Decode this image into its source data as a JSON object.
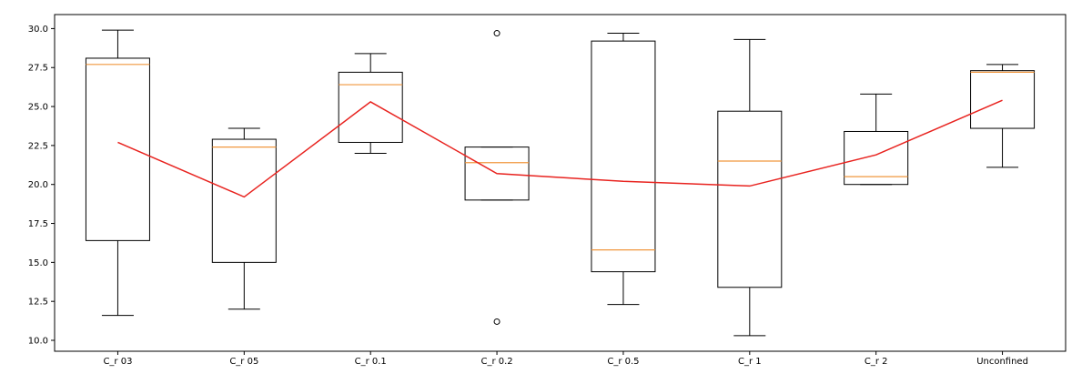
{
  "chart_data": {
    "type": "box",
    "title": "",
    "xlabel": "",
    "ylabel": "",
    "ylim": [
      9.3,
      30.9
    ],
    "yticks": [
      10.0,
      12.5,
      15.0,
      17.5,
      20.0,
      22.5,
      25.0,
      27.5,
      30.0
    ],
    "ytick_labels": [
      "10.0",
      "12.5",
      "15.0",
      "17.5",
      "20.0",
      "22.5",
      "25.0",
      "27.5",
      "30.0"
    ],
    "grid": false,
    "categories": [
      "C_r 03",
      "C_r 05",
      "C_r 0.1",
      "C_r 0.2",
      "C_r 0.5",
      "C_r 1",
      "C_r 2",
      "Unconfined"
    ],
    "boxes": [
      {
        "whisker_low": 11.6,
        "q1": 16.4,
        "median": 27.7,
        "q3": 28.1,
        "whisker_high": 29.9,
        "outliers": []
      },
      {
        "whisker_low": 12.0,
        "q1": 15.0,
        "median": 22.4,
        "q3": 22.9,
        "whisker_high": 23.6,
        "outliers": []
      },
      {
        "whisker_low": 22.0,
        "q1": 22.7,
        "median": 26.4,
        "q3": 27.2,
        "whisker_high": 28.4,
        "outliers": []
      },
      {
        "whisker_low": 19.0,
        "q1": 19.0,
        "median": 21.4,
        "q3": 22.4,
        "whisker_high": 22.4,
        "outliers": [
          29.7,
          11.2
        ]
      },
      {
        "whisker_low": 12.3,
        "q1": 14.4,
        "median": 15.8,
        "q3": 29.2,
        "whisker_high": 29.7,
        "outliers": []
      },
      {
        "whisker_low": 10.3,
        "q1": 13.4,
        "median": 21.5,
        "q3": 24.7,
        "whisker_high": 29.3,
        "outliers": []
      },
      {
        "whisker_low": 20.0,
        "q1": 20.0,
        "median": 20.5,
        "q3": 23.4,
        "whisker_high": 25.8,
        "outliers": []
      },
      {
        "whisker_low": 21.1,
        "q1": 23.6,
        "median": 27.2,
        "q3": 27.3,
        "whisker_high": 27.7,
        "outliers": []
      }
    ],
    "mean_line": {
      "color": "#e8231f",
      "values": [
        22.7,
        19.2,
        25.3,
        20.7,
        20.2,
        19.9,
        21.9,
        25.4
      ]
    },
    "colors": {
      "box": "#000000",
      "median": "#f0973e",
      "mean": "#e8231f"
    }
  }
}
